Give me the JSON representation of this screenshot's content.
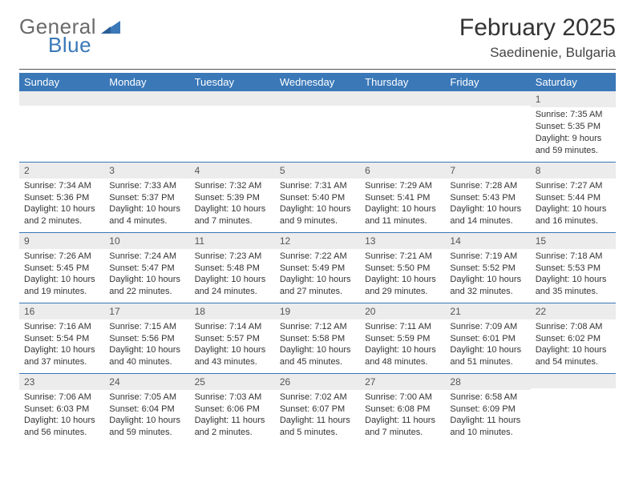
{
  "brand": {
    "word1": "General",
    "word2": "Blue"
  },
  "title": "February 2025",
  "location": "Saedinenie, Bulgaria",
  "styling": {
    "header_bg": "#3a78b8",
    "header_text": "#ffffff",
    "daynum_bg": "#ececec",
    "cell_border": "#3a78b8",
    "page_bg": "#ffffff",
    "text_color": "#333333",
    "title_fontsize": 30,
    "location_fontsize": 17,
    "header_fontsize": 13,
    "cell_fontsize": 11
  },
  "day_headers": [
    "Sunday",
    "Monday",
    "Tuesday",
    "Wednesday",
    "Thursday",
    "Friday",
    "Saturday"
  ],
  "weeks": [
    [
      {
        "n": "",
        "sr": "",
        "ss": "",
        "dl": ""
      },
      {
        "n": "",
        "sr": "",
        "ss": "",
        "dl": ""
      },
      {
        "n": "",
        "sr": "",
        "ss": "",
        "dl": ""
      },
      {
        "n": "",
        "sr": "",
        "ss": "",
        "dl": ""
      },
      {
        "n": "",
        "sr": "",
        "ss": "",
        "dl": ""
      },
      {
        "n": "",
        "sr": "",
        "ss": "",
        "dl": ""
      },
      {
        "n": "1",
        "sr": "Sunrise: 7:35 AM",
        "ss": "Sunset: 5:35 PM",
        "dl": "Daylight: 9 hours and 59 minutes."
      }
    ],
    [
      {
        "n": "2",
        "sr": "Sunrise: 7:34 AM",
        "ss": "Sunset: 5:36 PM",
        "dl": "Daylight: 10 hours and 2 minutes."
      },
      {
        "n": "3",
        "sr": "Sunrise: 7:33 AM",
        "ss": "Sunset: 5:37 PM",
        "dl": "Daylight: 10 hours and 4 minutes."
      },
      {
        "n": "4",
        "sr": "Sunrise: 7:32 AM",
        "ss": "Sunset: 5:39 PM",
        "dl": "Daylight: 10 hours and 7 minutes."
      },
      {
        "n": "5",
        "sr": "Sunrise: 7:31 AM",
        "ss": "Sunset: 5:40 PM",
        "dl": "Daylight: 10 hours and 9 minutes."
      },
      {
        "n": "6",
        "sr": "Sunrise: 7:29 AM",
        "ss": "Sunset: 5:41 PM",
        "dl": "Daylight: 10 hours and 11 minutes."
      },
      {
        "n": "7",
        "sr": "Sunrise: 7:28 AM",
        "ss": "Sunset: 5:43 PM",
        "dl": "Daylight: 10 hours and 14 minutes."
      },
      {
        "n": "8",
        "sr": "Sunrise: 7:27 AM",
        "ss": "Sunset: 5:44 PM",
        "dl": "Daylight: 10 hours and 16 minutes."
      }
    ],
    [
      {
        "n": "9",
        "sr": "Sunrise: 7:26 AM",
        "ss": "Sunset: 5:45 PM",
        "dl": "Daylight: 10 hours and 19 minutes."
      },
      {
        "n": "10",
        "sr": "Sunrise: 7:24 AM",
        "ss": "Sunset: 5:47 PM",
        "dl": "Daylight: 10 hours and 22 minutes."
      },
      {
        "n": "11",
        "sr": "Sunrise: 7:23 AM",
        "ss": "Sunset: 5:48 PM",
        "dl": "Daylight: 10 hours and 24 minutes."
      },
      {
        "n": "12",
        "sr": "Sunrise: 7:22 AM",
        "ss": "Sunset: 5:49 PM",
        "dl": "Daylight: 10 hours and 27 minutes."
      },
      {
        "n": "13",
        "sr": "Sunrise: 7:21 AM",
        "ss": "Sunset: 5:50 PM",
        "dl": "Daylight: 10 hours and 29 minutes."
      },
      {
        "n": "14",
        "sr": "Sunrise: 7:19 AM",
        "ss": "Sunset: 5:52 PM",
        "dl": "Daylight: 10 hours and 32 minutes."
      },
      {
        "n": "15",
        "sr": "Sunrise: 7:18 AM",
        "ss": "Sunset: 5:53 PM",
        "dl": "Daylight: 10 hours and 35 minutes."
      }
    ],
    [
      {
        "n": "16",
        "sr": "Sunrise: 7:16 AM",
        "ss": "Sunset: 5:54 PM",
        "dl": "Daylight: 10 hours and 37 minutes."
      },
      {
        "n": "17",
        "sr": "Sunrise: 7:15 AM",
        "ss": "Sunset: 5:56 PM",
        "dl": "Daylight: 10 hours and 40 minutes."
      },
      {
        "n": "18",
        "sr": "Sunrise: 7:14 AM",
        "ss": "Sunset: 5:57 PM",
        "dl": "Daylight: 10 hours and 43 minutes."
      },
      {
        "n": "19",
        "sr": "Sunrise: 7:12 AM",
        "ss": "Sunset: 5:58 PM",
        "dl": "Daylight: 10 hours and 45 minutes."
      },
      {
        "n": "20",
        "sr": "Sunrise: 7:11 AM",
        "ss": "Sunset: 5:59 PM",
        "dl": "Daylight: 10 hours and 48 minutes."
      },
      {
        "n": "21",
        "sr": "Sunrise: 7:09 AM",
        "ss": "Sunset: 6:01 PM",
        "dl": "Daylight: 10 hours and 51 minutes."
      },
      {
        "n": "22",
        "sr": "Sunrise: 7:08 AM",
        "ss": "Sunset: 6:02 PM",
        "dl": "Daylight: 10 hours and 54 minutes."
      }
    ],
    [
      {
        "n": "23",
        "sr": "Sunrise: 7:06 AM",
        "ss": "Sunset: 6:03 PM",
        "dl": "Daylight: 10 hours and 56 minutes."
      },
      {
        "n": "24",
        "sr": "Sunrise: 7:05 AM",
        "ss": "Sunset: 6:04 PM",
        "dl": "Daylight: 10 hours and 59 minutes."
      },
      {
        "n": "25",
        "sr": "Sunrise: 7:03 AM",
        "ss": "Sunset: 6:06 PM",
        "dl": "Daylight: 11 hours and 2 minutes."
      },
      {
        "n": "26",
        "sr": "Sunrise: 7:02 AM",
        "ss": "Sunset: 6:07 PM",
        "dl": "Daylight: 11 hours and 5 minutes."
      },
      {
        "n": "27",
        "sr": "Sunrise: 7:00 AM",
        "ss": "Sunset: 6:08 PM",
        "dl": "Daylight: 11 hours and 7 minutes."
      },
      {
        "n": "28",
        "sr": "Sunrise: 6:58 AM",
        "ss": "Sunset: 6:09 PM",
        "dl": "Daylight: 11 hours and 10 minutes."
      },
      {
        "n": "",
        "sr": "",
        "ss": "",
        "dl": ""
      }
    ]
  ]
}
